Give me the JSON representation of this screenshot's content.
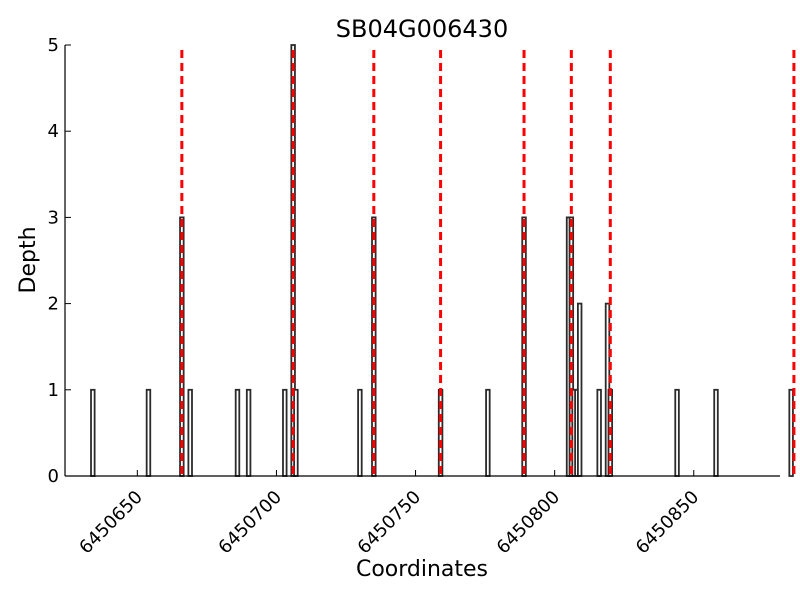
{
  "chart_data": {
    "type": "bar",
    "title": "SB04G006430",
    "xlabel": "Coordinates",
    "ylabel": "Depth",
    "xlim": [
      6450624,
      6450881
    ],
    "ylim": [
      0,
      5
    ],
    "xticks": [
      6450650,
      6450700,
      6450750,
      6450800,
      6450850
    ],
    "yticks": [
      0,
      1,
      2,
      3,
      4,
      5
    ],
    "grid": false,
    "bar_color": "#2b2b2b",
    "marker_line_color": "#ff0000",
    "bars": [
      {
        "x": 6450634,
        "depth": 1
      },
      {
        "x": 6450654,
        "depth": 1
      },
      {
        "x": 6450666,
        "depth": 3
      },
      {
        "x": 6450669,
        "depth": 1
      },
      {
        "x": 6450686,
        "depth": 1
      },
      {
        "x": 6450690,
        "depth": 1
      },
      {
        "x": 6450703,
        "depth": 1
      },
      {
        "x": 6450706,
        "depth": 5
      },
      {
        "x": 6450707,
        "depth": 1
      },
      {
        "x": 6450730,
        "depth": 1
      },
      {
        "x": 6450735,
        "depth": 3
      },
      {
        "x": 6450759,
        "depth": 1
      },
      {
        "x": 6450776,
        "depth": 1
      },
      {
        "x": 6450789,
        "depth": 3
      },
      {
        "x": 6450805,
        "depth": 3
      },
      {
        "x": 6450806,
        "depth": 3
      },
      {
        "x": 6450807,
        "depth": 1
      },
      {
        "x": 6450808,
        "depth": 1
      },
      {
        "x": 6450809,
        "depth": 2
      },
      {
        "x": 6450816,
        "depth": 1
      },
      {
        "x": 6450819,
        "depth": 2
      },
      {
        "x": 6450820,
        "depth": 1
      },
      {
        "x": 6450844,
        "depth": 1
      },
      {
        "x": 6450858,
        "depth": 1
      },
      {
        "x": 6450885,
        "depth": 1
      }
    ],
    "marker_lines_x": [
      6450666,
      6450706,
      6450735,
      6450759,
      6450789,
      6450806,
      6450820,
      6450886
    ]
  }
}
